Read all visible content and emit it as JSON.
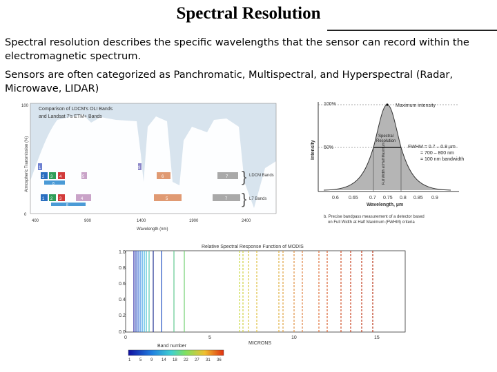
{
  "slide": {
    "title": "Spectral Resolution",
    "paragraph1": "Spectral resolution describes the specific wavelengths that the sensor can record within the electromagnetic spectrum.",
    "paragraph2": "Sensors are often categorized as Panchromatic, Multispectral, and Hyperspectral (Radar, Microwave, LIDAR)"
  },
  "figure_left": {
    "title_line1": "Comparison of LDCM's OLI Bands",
    "title_line2": "and Landsat 7's ETM+ Bands",
    "ylabel": "Atmospheric Transmission (%)",
    "xlabel": "Wavelength (nm)",
    "y_ticks": [
      "100",
      "0"
    ],
    "x_ticks": [
      "400",
      "900",
      "1400",
      "1900",
      "2400"
    ],
    "oli_bands": [
      "1",
      "2",
      "3",
      "4",
      "5",
      "9",
      "6",
      "7",
      "8"
    ],
    "etm_bands": [
      "1",
      "2",
      "3",
      "4",
      "5",
      "7",
      "8"
    ],
    "oli_label": "LDCM Bands",
    "etm_label": "L7 Bands"
  },
  "figure_right": {
    "label_100": "100%",
    "label_max": "Maximum intensity",
    "label_50": "50%",
    "ylabel": "Intensity",
    "spectral_res": [
      "Spectral",
      "Resolution"
    ],
    "full_width": "Full Width at Half Maximum",
    "fwhm": [
      "FWHM = 0.7 – 0.8 µm",
      "= 700 – 800 nm",
      "= 100 nm bandwidth"
    ],
    "x_ticks": [
      "0.6",
      "0.65",
      "0.7",
      "0.75",
      "0.8",
      "0.85",
      "0.9"
    ],
    "xlabel": "Wavelength, µm",
    "caption": [
      "b. Precise bandpass measurement of a detector based",
      "on Full Width at Half Maximum (FWHM) criteria"
    ]
  },
  "figure_bottom": {
    "title": "Relative Spectral Response Function of MODIS",
    "y_ticks": [
      "1.0",
      "0.8",
      "0.6",
      "0.4",
      "0.2",
      "0.0"
    ],
    "x_ticks": [
      "0",
      "5",
      "10",
      "15"
    ],
    "xlabel": "MICRONS",
    "colorbar_label": "Band number",
    "colorbar_ticks": [
      "1",
      "5",
      "9",
      "14",
      "18",
      "22",
      "27",
      "31",
      "36"
    ]
  }
}
